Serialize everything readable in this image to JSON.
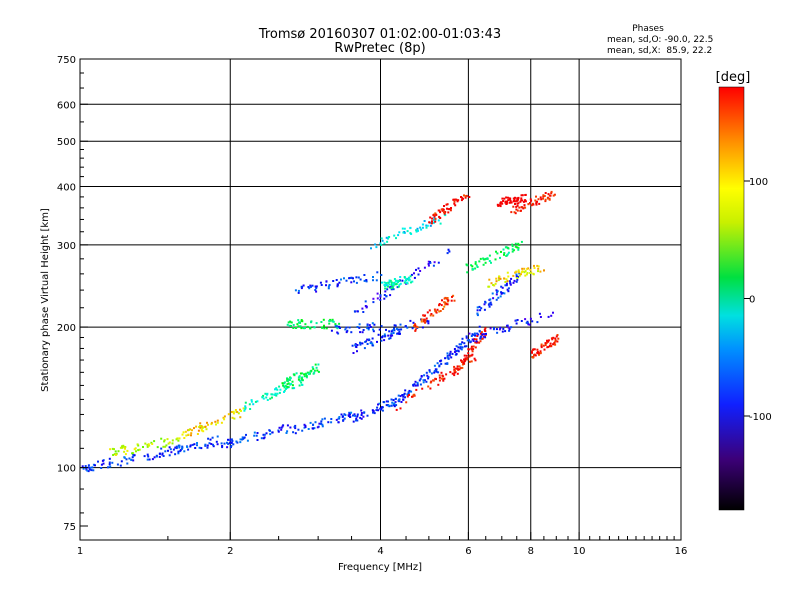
{
  "chart_data": {
    "type": "scatter",
    "title": "Tromsø 20160307 01:02:00-01:03:43",
    "subtitle": "RwPretec (8p)",
    "xlabel": "Frequency [MHz]",
    "ylabel": "Stationary phase Virtual Height [km]",
    "xscale": "log",
    "yscale": "log",
    "xlim": [
      1,
      16
    ],
    "ylim": [
      70,
      750
    ],
    "xticks": [
      1,
      2,
      4,
      6,
      8,
      10,
      16
    ],
    "yticks": [
      75,
      100,
      200,
      300,
      400,
      500,
      600,
      750
    ],
    "xgrid": [
      2,
      4,
      6,
      8,
      10
    ],
    "ygrid": [
      100,
      200,
      300,
      400,
      500,
      600
    ],
    "grid": true,
    "stats": {
      "heading": "Phases",
      "line1": "mean, sd,O: -90.0, 22.5",
      "line2": "mean, sd,X:  85.9, 22.2"
    },
    "colorbar": {
      "label": "[deg]",
      "min": -180,
      "max": 180,
      "ticks": [
        100,
        0,
        -100
      ],
      "placement": "right"
    },
    "traces": [
      {
        "x0": 1.0,
        "x1": 1.45,
        "y0": 100,
        "y1": 108,
        "phase": -100
      },
      {
        "x0": 1.45,
        "x1": 1.9,
        "y0": 108,
        "y1": 115,
        "phase": -100
      },
      {
        "x0": 1.9,
        "x1": 2.6,
        "y0": 112,
        "y1": 122,
        "phase": -100
      },
      {
        "x0": 2.6,
        "x1": 3.5,
        "y0": 120,
        "y1": 130,
        "phase": -100
      },
      {
        "x0": 3.5,
        "x1": 4.3,
        "y0": 128,
        "y1": 140,
        "phase": -100
      },
      {
        "x0": 4.3,
        "x1": 5.2,
        "y0": 140,
        "y1": 165,
        "phase": -100
      },
      {
        "x0": 5.2,
        "x1": 6.3,
        "y0": 165,
        "y1": 200,
        "phase": -100
      },
      {
        "x0": 1.15,
        "x1": 1.6,
        "y0": 108,
        "y1": 116,
        "phase": 40
      },
      {
        "x0": 1.6,
        "x1": 2.1,
        "y0": 118,
        "y1": 132,
        "phase": 60
      },
      {
        "x0": 2.1,
        "x1": 2.8,
        "y0": 135,
        "y1": 155,
        "phase": -40
      },
      {
        "x0": 2.5,
        "x1": 3.0,
        "y0": 150,
        "y1": 165,
        "phase": -20
      },
      {
        "x0": 2.6,
        "x1": 3.3,
        "y0": 204,
        "y1": 204,
        "phase": -20
      },
      {
        "x0": 3.2,
        "x1": 5.0,
        "y0": 198,
        "y1": 205,
        "phase": -100
      },
      {
        "x0": 3.5,
        "x1": 4.5,
        "y0": 180,
        "y1": 200,
        "phase": -100
      },
      {
        "x0": 2.7,
        "x1": 4.0,
        "y0": 240,
        "y1": 260,
        "phase": -100
      },
      {
        "x0": 3.5,
        "x1": 5.5,
        "y0": 215,
        "y1": 290,
        "phase": -110
      },
      {
        "x0": 4.0,
        "x1": 4.6,
        "y0": 245,
        "y1": 255,
        "phase": -40
      },
      {
        "x0": 3.8,
        "x1": 5.5,
        "y0": 300,
        "y1": 350,
        "phase": -60
      },
      {
        "x0": 4.6,
        "x1": 5.6,
        "y0": 200,
        "y1": 235,
        "phase": 100
      },
      {
        "x0": 4.3,
        "x1": 6.2,
        "y0": 135,
        "y1": 175,
        "phase": 110
      },
      {
        "x0": 5.6,
        "x1": 6.5,
        "y0": 160,
        "y1": 200,
        "phase": 110
      },
      {
        "x0": 6.0,
        "x1": 8.8,
        "y0": 190,
        "y1": 215,
        "phase": -110
      },
      {
        "x0": 6.2,
        "x1": 7.6,
        "y0": 215,
        "y1": 260,
        "phase": -100
      },
      {
        "x0": 5.8,
        "x1": 7.6,
        "y0": 265,
        "y1": 300,
        "phase": -20
      },
      {
        "x0": 6.5,
        "x1": 8.5,
        "y0": 250,
        "y1": 270,
        "phase": 60
      },
      {
        "x0": 8.0,
        "x1": 9.0,
        "y0": 175,
        "y1": 190,
        "phase": 110
      },
      {
        "x0": 5.0,
        "x1": 6.0,
        "y0": 340,
        "y1": 390,
        "phase": 110
      },
      {
        "x0": 7.2,
        "x1": 9.0,
        "y0": 355,
        "y1": 390,
        "phase": 110
      },
      {
        "x0": 6.8,
        "x1": 7.8,
        "y0": 370,
        "y1": 380,
        "phase": 170
      }
    ]
  }
}
